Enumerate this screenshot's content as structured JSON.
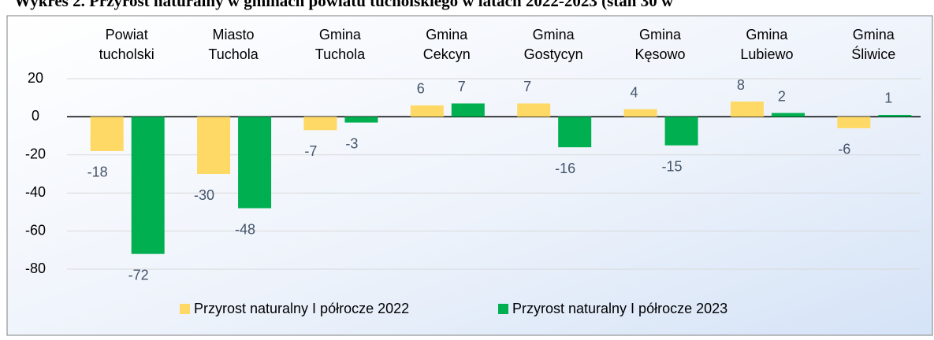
{
  "chart_data": {
    "type": "bar",
    "title": "Wykres 2. Przyrost naturalny w gminach powiatu tucholskiego w latach 2022-2023 (stan 30 w",
    "categories": [
      "Powiat tucholski",
      "Miasto Tuchola",
      "Gmina Tuchola",
      "Gmina Cekcyn",
      "Gmina Gostycyn",
      "Gmina Kęsowo",
      "Gmina Lubiewo",
      "Gmina Śliwice"
    ],
    "series": [
      {
        "name": "Przyrost naturalny I półrocze 2022",
        "color": "#ffd966",
        "values": [
          -18,
          -30,
          -7,
          6,
          7,
          4,
          8,
          -6
        ]
      },
      {
        "name": "Przyrost naturalny I półrocze 2023",
        "color": "#00b050",
        "values": [
          -72,
          -48,
          -3,
          7,
          -16,
          -15,
          2,
          1
        ]
      }
    ],
    "ylim": [
      -80,
      20
    ],
    "yticks": [
      20,
      0,
      -20,
      -40,
      -60,
      -80
    ],
    "grid": true,
    "legend": "bottom"
  }
}
